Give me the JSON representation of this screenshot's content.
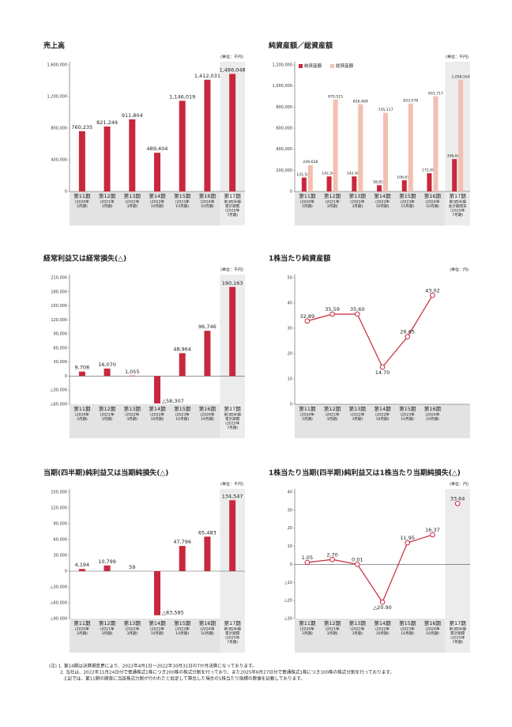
{
  "chart_data": [
    {
      "type": "bar",
      "title": "売上高",
      "unit": "(単位：千円)",
      "color": "#c8283c",
      "shade_last": true,
      "categories": [
        "第11期",
        "第12期",
        "第13期",
        "第14期",
        "第15期",
        "第16期",
        "第17期"
      ],
      "category_notes": [
        [
          "(2020年",
          "3月期)"
        ],
        [
          "(2021年",
          "3月期)"
        ],
        [
          "(2022年",
          "3月期)"
        ],
        [
          "(2022年",
          "10月期)"
        ],
        [
          "(2023年",
          "10月期)"
        ],
        [
          "(2024年",
          "10月期)"
        ],
        [
          "第3四半期",
          "累計期間",
          "(2025年",
          "7月期)"
        ]
      ],
      "values": [
        760235,
        821249,
        911804,
        489404,
        1146019,
        1412031,
        1486048
      ],
      "value_labels": [
        "760,235",
        "821,249",
        "911,804",
        "489,404",
        "1,146,019",
        "1,412,031",
        "1,486,048"
      ],
      "ylim": [
        0,
        1600000
      ],
      "yticks": [
        0,
        {
          "value": 400000,
          "label": "400,000"
        },
        {
          "value": 800000,
          "label": "800,000"
        },
        {
          "value": 1200000,
          "label": "1,200,000"
        },
        {
          "value": 1600000,
          "label": "1,600,000"
        }
      ]
    },
    {
      "type": "grouped_bar",
      "title": "純資産額／総資産額",
      "unit": "(単位：千円)",
      "shade_last": true,
      "categories": [
        "第11期",
        "第12期",
        "第13期",
        "第14期",
        "第15期",
        "第16期",
        "第17期"
      ],
      "category_notes": [
        [
          "(2020年",
          "3月期)"
        ],
        [
          "(2021年",
          "3月期)"
        ],
        [
          "(2022年",
          "3月期)"
        ],
        [
          "(2022年",
          "10月期)"
        ],
        [
          "(2023年",
          "10月期)"
        ],
        [
          "(2024年",
          "10月期)"
        ],
        [
          "第3四半期",
          "会計期間末",
          "(2025年",
          "7月期)"
        ]
      ],
      "series": [
        {
          "name": "純資産額",
          "color": "#c8283c",
          "values": [
            131544,
            142343,
            142402,
            58817,
            106614,
            172097,
            306645
          ],
          "value_labels": [
            "131,544",
            "142,343",
            "142,402",
            "58,817",
            "106,614",
            "172,097",
            "306,645"
          ]
        },
        {
          "name": "総資産額",
          "color": "#f4bfb0",
          "values": [
            249628,
            870515,
            826468,
            745117,
            833578,
            901717,
            1058554
          ],
          "value_labels": [
            "249,628",
            "870,515",
            "826,468",
            "745,117",
            "833,578",
            "901,717",
            "1,058,554"
          ]
        }
      ],
      "ylim": [
        0,
        1200000
      ],
      "yticks": [
        0,
        {
          "value": 200000,
          "label": "200,000"
        },
        {
          "value": 400000,
          "label": "400,000"
        },
        {
          "value": 600000,
          "label": "600,000"
        },
        {
          "value": 800000,
          "label": "800,000"
        },
        {
          "value": 1000000,
          "label": "1,000,000"
        },
        {
          "value": 1200000,
          "label": "1,200,000"
        }
      ]
    },
    {
      "type": "bar",
      "title": "経常利益又は経常損失(△)",
      "unit": "(単位：千円)",
      "color": "#c8283c",
      "shade_last": true,
      "categories": [
        "第11期",
        "第12期",
        "第13期",
        "第14期",
        "第15期",
        "第16期",
        "第17期"
      ],
      "category_notes": [
        [
          "(2020年",
          "3月期)"
        ],
        [
          "(2021年",
          "3月期)"
        ],
        [
          "(2022年",
          "3月期)"
        ],
        [
          "(2022年",
          "10月期)"
        ],
        [
          "(2023年",
          "10月期)"
        ],
        [
          "(2024年",
          "10月期)"
        ],
        [
          "第3四半期",
          "累計期間",
          "(2025年",
          "7月期)"
        ]
      ],
      "values": [
        9708,
        16070,
        1055,
        -58307,
        48964,
        96746,
        190163
      ],
      "value_labels": [
        "9,708",
        "16,070",
        "1,055",
        "△58,307",
        "48,964",
        "96,746",
        "190,163"
      ],
      "ylim": [
        -60000,
        210000
      ],
      "yticks": [
        {
          "value": -60000,
          "label": "△60,000"
        },
        {
          "value": -30000,
          "label": "△30,000"
        },
        0,
        {
          "value": 30000,
          "label": "30,000"
        },
        {
          "value": 60000,
          "label": "60,000"
        },
        {
          "value": 90000,
          "label": "90,000"
        },
        {
          "value": 120000,
          "label": "120,000"
        },
        {
          "value": 150000,
          "label": "150,000"
        },
        {
          "value": 180000,
          "label": "180,000"
        },
        {
          "value": 210000,
          "label": "210,000"
        }
      ]
    },
    {
      "type": "line",
      "title": "1株当たり純資産額",
      "unit": "(単位：円)",
      "color": "#c8283c",
      "shade_last": false,
      "categories": [
        "第11期",
        "第12期",
        "第13期",
        "第14期",
        "第15期",
        "第16期"
      ],
      "category_notes": [
        [
          "(2020年",
          "3月期)"
        ],
        [
          "(2021年",
          "3月期)"
        ],
        [
          "(2022年",
          "3月期)"
        ],
        [
          "(2022年",
          "10月期)"
        ],
        [
          "(2023年",
          "10月期)"
        ],
        [
          "(2024年",
          "10月期)"
        ]
      ],
      "values": [
        32.89,
        35.59,
        35.6,
        14.7,
        26.65,
        43.02
      ],
      "value_labels": [
        "32.89",
        "35.59",
        "35.60",
        "14.70",
        "26.65",
        "43.02"
      ],
      "ylim": [
        0,
        50
      ],
      "yticks": [
        0,
        10,
        20,
        30,
        40,
        50
      ]
    },
    {
      "type": "bar",
      "title": "当期(四半期)純利益又は当期純損失(△)",
      "unit": "(単位：千円)",
      "color": "#c8283c",
      "shade_last": true,
      "categories": [
        "第11期",
        "第12期",
        "第13期",
        "第14期",
        "第15期",
        "第16期",
        "第17期"
      ],
      "category_notes": [
        [
          "(2020年",
          "3月期)"
        ],
        [
          "(2021年",
          "3月期)"
        ],
        [
          "(2022年",
          "3月期)"
        ],
        [
          "(2022年",
          "10月期)"
        ],
        [
          "(2023年",
          "10月期)"
        ],
        [
          "(2024年",
          "10月期)"
        ],
        [
          "第3四半期",
          "累計期間",
          "(2025年",
          "7月期)"
        ]
      ],
      "values": [
        4194,
        10799,
        59,
        -83585,
        47796,
        65483,
        134547
      ],
      "value_labels": [
        "4,194",
        "10,799",
        "59",
        "△83,585",
        "47,796",
        "65,483",
        "134,547"
      ],
      "ylim": [
        -90000,
        150000
      ],
      "yticks": [
        {
          "value": -90000,
          "label": "△90,000"
        },
        {
          "value": -60000,
          "label": "△60,000"
        },
        {
          "value": -30000,
          "label": "△30,000"
        },
        0,
        {
          "value": 30000,
          "label": "30,000"
        },
        {
          "value": 60000,
          "label": "60,000"
        },
        {
          "value": 90000,
          "label": "90,000"
        },
        {
          "value": 120000,
          "label": "120,000"
        },
        {
          "value": 150000,
          "label": "150,000"
        }
      ]
    },
    {
      "type": "line",
      "title": "1株当たり当期(四半期)純利益又は1株当たり当期純損失(△)",
      "unit": "(単位：円)",
      "color": "#c8283c",
      "shade_last": true,
      "categories": [
        "第11期",
        "第12期",
        "第13期",
        "第14期",
        "第15期",
        "第16期",
        "第17期"
      ],
      "category_notes": [
        [
          "(2020年",
          "3月期)"
        ],
        [
          "(2021年",
          "3月期)"
        ],
        [
          "(2022年",
          "3月期)"
        ],
        [
          "(2022年",
          "10月期)"
        ],
        [
          "(2023年",
          "10月期)"
        ],
        [
          "(2024年",
          "10月期)"
        ],
        [
          "第3四半期",
          "累計期間",
          "(2025年",
          "7月期)"
        ]
      ],
      "values": [
        1.05,
        2.7,
        0.01,
        -20.9,
        11.95,
        16.37,
        null
      ],
      "value_labels": [
        "1.05",
        "2.70",
        "0.01",
        "△20.90",
        "11.95",
        "16.37",
        null
      ],
      "extra_values": [
        null,
        null,
        null,
        null,
        null,
        null,
        33.64
      ],
      "extra_value_labels": [
        null,
        null,
        null,
        null,
        null,
        null,
        "33.64"
      ],
      "ylim": [
        -30,
        40
      ],
      "yticks": [
        {
          "value": -30,
          "label": "△30"
        },
        {
          "value": -20,
          "label": "△20"
        },
        {
          "value": -10,
          "label": "△10"
        },
        0,
        10,
        20,
        30,
        40
      ]
    }
  ],
  "notes": [
    "(注) 1. 第14期は決算期変更により、2022年4月1日～2022年10月31日の7か月決算になっております。",
    "2. 当社は、2022年11月24日付で普通株式1株につき200株の株式分割を行っており、また2025年6月27日付で普通株式1株につき100株の株式分割を行っております。",
    "上記では、第11期の期首に当該株式分割が行われたと仮定して算出した場合の1株当たり指標の数値を記載しております。"
  ]
}
